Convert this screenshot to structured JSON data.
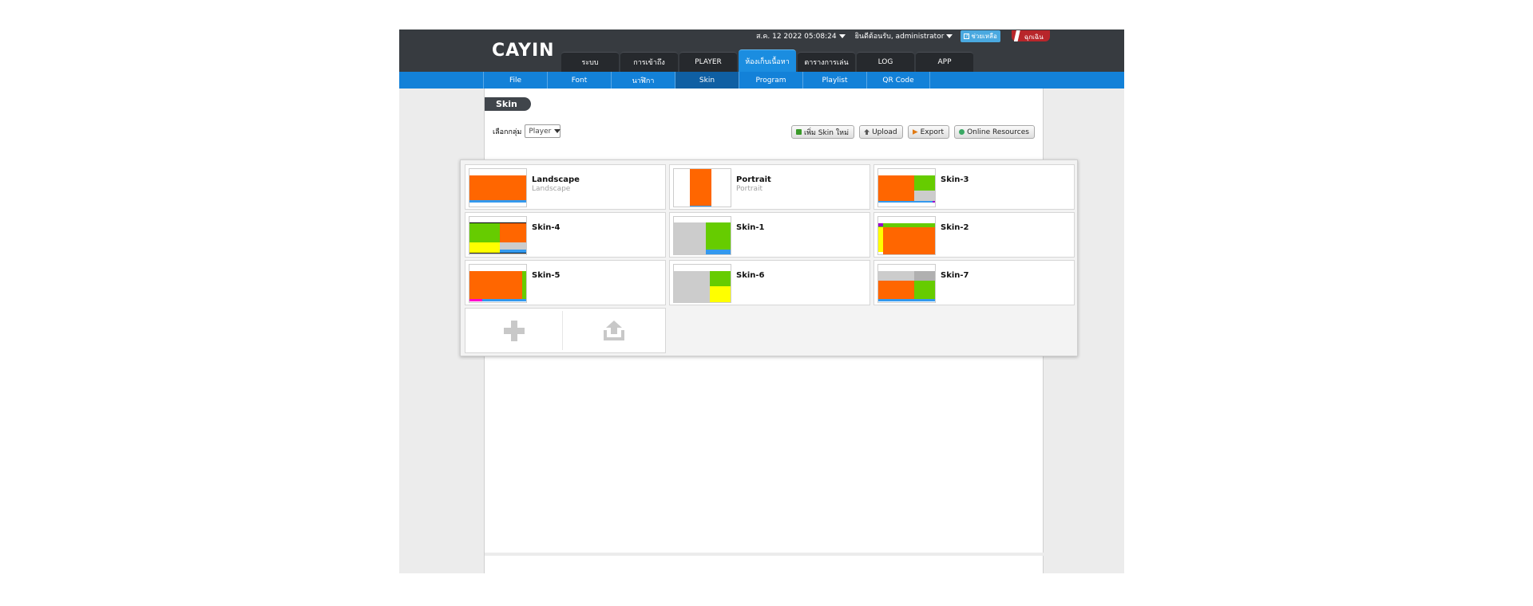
{
  "header": {
    "logo": "CAYIN",
    "datetime": "ส.ค. 12 2022 05:08:24",
    "welcome": "ยินดีต้อนรับ, administrator",
    "help": "ช่วยเหลือ",
    "logout": "ฉุกเฉิน"
  },
  "main_tabs": [
    {
      "label": "ระบบ",
      "active": false
    },
    {
      "label": "การเข้าถึง",
      "active": false
    },
    {
      "label": "PLAYER",
      "active": false
    },
    {
      "label": "ห้องเก็บเนื้อหา",
      "active": true
    },
    {
      "label": "ตารางการเล่น",
      "active": false
    },
    {
      "label": "LOG",
      "active": false
    },
    {
      "label": "APP",
      "active": false
    }
  ],
  "sub_nav": [
    {
      "label": "File",
      "active": false
    },
    {
      "label": "Font",
      "active": false
    },
    {
      "label": "นาฬิกา",
      "active": false
    },
    {
      "label": "Skin",
      "active": true
    },
    {
      "label": "Program",
      "active": false
    },
    {
      "label": "Playlist",
      "active": false
    },
    {
      "label": "QR Code",
      "active": false
    }
  ],
  "page": {
    "title": "Skin",
    "group_label": "เลือกกลุ่ม",
    "group_value": "Player"
  },
  "actions": {
    "add": "เพิ่ม Skin ใหม่",
    "upload": "Upload",
    "export": "Export",
    "online": "Online Resources"
  },
  "skins": [
    {
      "name": "Landscape",
      "subtitle": "Landscape"
    },
    {
      "name": "Portrait",
      "subtitle": "Portrait"
    },
    {
      "name": "Skin-3",
      "subtitle": ""
    },
    {
      "name": "Skin-4",
      "subtitle": ""
    },
    {
      "name": "Skin-1",
      "subtitle": ""
    },
    {
      "name": "Skin-2",
      "subtitle": ""
    },
    {
      "name": "Skin-5",
      "subtitle": ""
    },
    {
      "name": "Skin-6",
      "subtitle": ""
    },
    {
      "name": "Skin-7",
      "subtitle": ""
    }
  ],
  "colors": {
    "header_bg": "#373b40",
    "active_tab": "#1b8de0",
    "subnav_bg": "#1381d8",
    "zone_orange": "#ff6600",
    "zone_green": "#66cc00",
    "zone_gray": "#cccccc",
    "zone_yellow": "#ffff00",
    "zone_blue": "#3399ee",
    "zone_purple": "#9900cc",
    "zone_magenta": "#ff00cc"
  },
  "icons": {
    "add_skin": "plus-icon",
    "upload_skin": "upload-tray-icon"
  }
}
